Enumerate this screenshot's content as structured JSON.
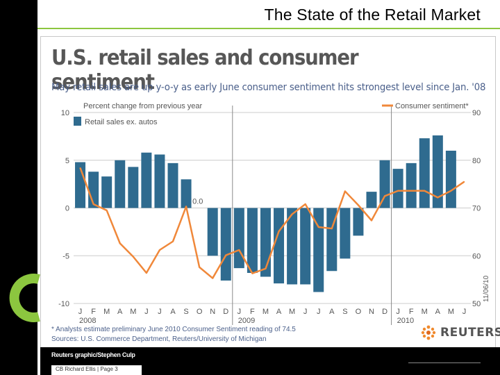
{
  "slide": {
    "title": "The State of the Retail Market",
    "footer": "CB Richard Ellis | Page 3"
  },
  "chart_data": {
    "type": "bar+line",
    "title": "U.S. retail sales and consumer sentiment",
    "subtitle": "May retail sales are up y-o-y as early June consumer sentiment hits strongest level since Jan. '08",
    "left_axis_label": "Percent change from previous year",
    "left_ylim": [
      -10,
      10
    ],
    "left_ticks": [
      "10",
      "5",
      "0",
      "-5",
      "-10"
    ],
    "right_ylim": [
      50,
      90
    ],
    "right_ticks": [
      "90",
      "80",
      "70",
      "60",
      "50"
    ],
    "month_labels": [
      "J",
      "F",
      "M",
      "A",
      "M",
      "J",
      "J",
      "A",
      "S",
      "O",
      "N",
      "D",
      "J",
      "F",
      "M",
      "A",
      "M",
      "J",
      "J",
      "A",
      "S",
      "O",
      "N",
      "D",
      "J",
      "F",
      "M",
      "A",
      "M",
      "J"
    ],
    "year_labels": [
      "2008",
      "2009",
      "2010"
    ],
    "bar_series": {
      "name": "Retail sales ex. autos",
      "color": "#2f6b8f",
      "values": [
        4.8,
        3.8,
        3.3,
        5.0,
        4.3,
        5.8,
        5.6,
        4.7,
        3.0,
        0.0,
        -5.0,
        -7.6,
        -6.3,
        -6.8,
        -7.2,
        -7.9,
        -8.0,
        -8.0,
        -8.8,
        -6.6,
        -5.3,
        -2.9,
        1.7,
        5.0,
        4.1,
        4.7,
        7.3,
        7.6,
        6.0,
        null
      ],
      "zero_annotation": "0.0"
    },
    "line_series": {
      "name": "Consumer sentiment*",
      "color": "#f0883a",
      "values": [
        78.4,
        70.8,
        69.5,
        62.6,
        59.8,
        56.4,
        61.2,
        63.0,
        70.3,
        57.6,
        55.3,
        60.1,
        61.2,
        56.3,
        57.3,
        65.1,
        68.7,
        70.8,
        66.0,
        65.7,
        73.5,
        70.6,
        67.4,
        72.5,
        73.6,
        73.6,
        73.6,
        72.2,
        73.6,
        75.5
      ]
    },
    "date_stamp": "11/06/10",
    "footnotes": [
      "* Analysts estimate preliminary June 2010 Consumer Sentiment reading of 74.5",
      "Sources: U.S. Commerce Department, Reuters/University of Michigan"
    ],
    "credit": "Reuters graphic/Stephen Culp",
    "brand": "REUTERS",
    "colors": {
      "subtitle": "#4a5f8a",
      "grid": "#cccccc",
      "divider": "#888888",
      "slide_accent": "#8cc63f"
    }
  }
}
